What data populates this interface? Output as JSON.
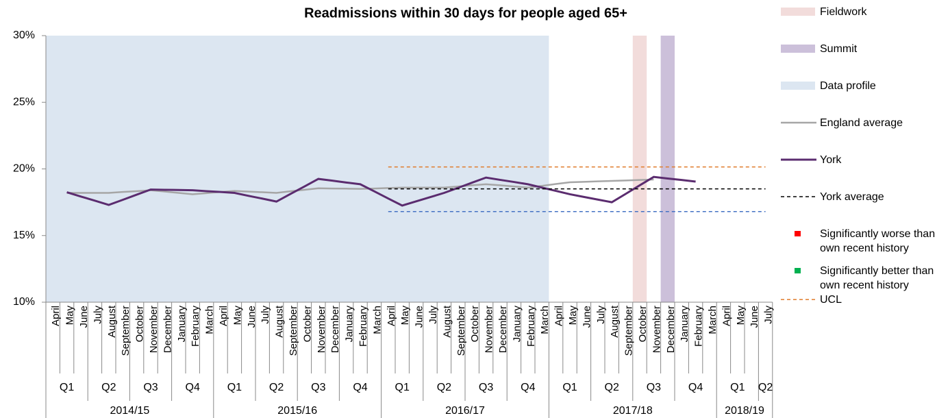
{
  "chart_data": {
    "type": "line",
    "title": "Readmissions within 30 days for people aged 65+",
    "categories": [
      "April",
      "May",
      "June",
      "July",
      "August",
      "September",
      "October",
      "November",
      "December",
      "January",
      "February",
      "March",
      "April",
      "May",
      "June",
      "July",
      "August",
      "September",
      "October",
      "November",
      "December",
      "January",
      "February",
      "March",
      "April",
      "May",
      "June",
      "July",
      "August",
      "September",
      "October",
      "November",
      "December",
      "January",
      "February",
      "March",
      "April",
      "May",
      "June",
      "July",
      "August",
      "September",
      "October",
      "November",
      "December",
      "January",
      "February",
      "March",
      "April",
      "May",
      "June",
      "July"
    ],
    "quarter_labels": [
      "Q1",
      "Q2",
      "Q3",
      "Q4",
      "Q1",
      "Q2",
      "Q3",
      "Q4",
      "Q1",
      "Q2",
      "Q3",
      "Q4",
      "Q1",
      "Q2",
      "Q3",
      "Q4",
      "Q1",
      "Q2"
    ],
    "year_labels": [
      "2014/15",
      "2015/16",
      "2016/17",
      "2017/18",
      "2018/19"
    ],
    "ylim": [
      10,
      30
    ],
    "yticks": [
      {
        "value": 10,
        "label": "10%"
      },
      {
        "value": 15,
        "label": "15%"
      },
      {
        "value": 20,
        "label": "20%"
      },
      {
        "value": 25,
        "label": "25%"
      },
      {
        "value": 30,
        "label": "30%"
      }
    ],
    "spans": [
      {
        "name": "Fieldwork",
        "color": "#f2dcdb",
        "from": 42,
        "to": 42
      },
      {
        "name": "Summit",
        "color": "#ccc0da",
        "from": 44,
        "to": 44
      },
      {
        "name": "Data profile",
        "color": "#dce6f1",
        "from": 0,
        "to": 35
      }
    ],
    "series": [
      {
        "name": "England average",
        "color": "#a6a6a6",
        "width": 2.5,
        "dashed": false,
        "values": [
          null,
          18.2,
          18.2,
          18.2,
          18.2,
          18.27,
          18.33,
          18.4,
          18.3,
          18.2,
          18.1,
          18.18,
          18.27,
          18.35,
          18.3,
          18.25,
          18.2,
          18.32,
          18.43,
          18.55,
          18.53,
          18.52,
          18.5,
          18.53,
          18.57,
          18.6,
          18.6,
          18.6,
          18.6,
          18.68,
          18.77,
          18.85,
          18.77,
          18.68,
          18.6,
          18.73,
          18.87,
          19.0,
          19.03,
          19.07,
          19.1,
          19.13,
          19.17,
          19.2,
          null,
          null,
          null,
          null,
          null,
          null,
          null,
          null
        ]
      },
      {
        "name": "York",
        "color": "#5b2c6f",
        "width": 3,
        "dashed": false,
        "values": [
          null,
          18.25,
          17.93,
          17.62,
          17.3,
          17.68,
          18.07,
          18.45,
          18.43,
          18.42,
          18.4,
          18.33,
          18.27,
          18.2,
          17.98,
          17.77,
          17.55,
          18.12,
          18.68,
          19.25,
          19.12,
          18.98,
          18.85,
          18.32,
          17.78,
          17.25,
          17.57,
          17.88,
          18.2,
          18.58,
          18.97,
          19.35,
          19.18,
          19.02,
          18.85,
          18.6,
          18.35,
          18.1,
          17.9,
          17.7,
          17.5,
          18.13,
          18.77,
          19.4,
          19.28,
          19.17,
          19.05,
          null,
          null,
          null,
          null,
          null
        ]
      },
      {
        "name": "York average",
        "color": "#000000",
        "width": 1.5,
        "dashed": true,
        "values": [
          null,
          null,
          null,
          null,
          null,
          null,
          null,
          null,
          null,
          null,
          null,
          null,
          null,
          null,
          null,
          null,
          null,
          null,
          null,
          null,
          null,
          null,
          null,
          null,
          18.5,
          18.5,
          18.5,
          18.5,
          18.5,
          18.5,
          18.5,
          18.5,
          18.5,
          18.5,
          18.5,
          18.5,
          18.5,
          18.5,
          18.5,
          18.5,
          18.5,
          18.5,
          18.5,
          18.5,
          18.5,
          18.5,
          18.5,
          18.5,
          18.5,
          18.5,
          18.5,
          18.5
        ]
      },
      {
        "name": "UCL",
        "color": "#e07b2a",
        "width": 1.5,
        "dashed": true,
        "values": [
          null,
          null,
          null,
          null,
          null,
          null,
          null,
          null,
          null,
          null,
          null,
          null,
          null,
          null,
          null,
          null,
          null,
          null,
          null,
          null,
          null,
          null,
          null,
          null,
          20.15,
          20.15,
          20.15,
          20.15,
          20.15,
          20.15,
          20.15,
          20.15,
          20.15,
          20.15,
          20.15,
          20.15,
          20.15,
          20.15,
          20.15,
          20.15,
          20.15,
          20.15,
          20.15,
          20.15,
          20.15,
          20.15,
          20.15,
          20.15,
          20.15,
          20.15,
          20.15,
          20.15
        ]
      },
      {
        "color": "#4472c4",
        "width": 1.5,
        "dashed": true,
        "values": [
          null,
          null,
          null,
          null,
          null,
          null,
          null,
          null,
          null,
          null,
          null,
          null,
          null,
          null,
          null,
          null,
          null,
          null,
          null,
          null,
          null,
          null,
          null,
          null,
          16.8,
          16.8,
          16.8,
          16.8,
          16.8,
          16.8,
          16.8,
          16.8,
          16.8,
          16.8,
          16.8,
          16.8,
          16.8,
          16.8,
          16.8,
          16.8,
          16.8,
          16.8,
          16.8,
          16.8,
          16.8,
          16.8,
          16.8,
          16.8,
          16.8,
          16.8,
          16.8,
          16.8
        ]
      }
    ],
    "legend_extra": [
      {
        "name": "Significantly worse than own recent history",
        "color": "#ff0000"
      },
      {
        "name": "Significantly better than own recent history",
        "color": "#00b050"
      }
    ]
  }
}
